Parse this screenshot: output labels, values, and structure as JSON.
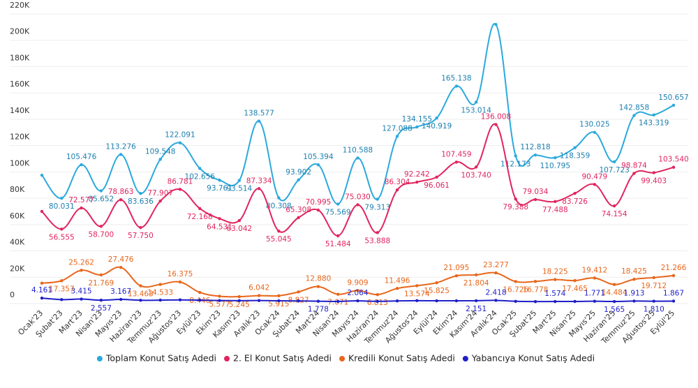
{
  "chart_data": {
    "type": "line",
    "categories": [
      "Ocak'23",
      "Şubat'23",
      "Mart'23",
      "Nisan'23",
      "Mayıs'23",
      "Haziran'23",
      "Temmuz'23",
      "Ağustos'23",
      "Eylül'23",
      "Ekim'23",
      "Kasım'23",
      "Aralık'23",
      "Ocak'24",
      "Şubat'24",
      "Mart'24",
      "Nisan'24",
      "Mayıs'24",
      "Haziran'24",
      "Temmuz'24",
      "Ağustos'24",
      "Eylül'24",
      "Ekim'24",
      "Kasım'24",
      "Aralık'24",
      "Ocak'25",
      "Şubat'25",
      "Mart'25",
      "Nisan'25",
      "Mayıs'25",
      "Haziran'25",
      "Temmuz'25",
      "Ağustos'25",
      "Eylül'25"
    ],
    "series": [
      {
        "name": "Toplam Konut Satış Adedi",
        "color": "#2aa9dd",
        "values": [
          97500,
          80031,
          105476,
          85652,
          113276,
          83636,
          109548,
          122091,
          102656,
          93761,
          93514,
          138577,
          80308,
          93902,
          105394,
          75569,
          110588,
          79313,
          127088,
          134155,
          140919,
          165138,
          153014,
          212000,
          112173,
          112818,
          110795,
          118359,
          130025,
          107723,
          142858,
          143319,
          150657
        ],
        "value_labels": [
          null,
          "80.031",
          "105.476",
          "85.652",
          "113.276",
          "83.636",
          "109.548",
          "122.091",
          "102.656",
          "93.761",
          "93.514",
          "138.577",
          "80.308",
          "93.902",
          "105.394",
          "75.569",
          "110.588",
          "79.313",
          "127.088",
          "134.155",
          "140.919",
          "165.138",
          "153.014",
          null,
          "112.173",
          "112.818",
          "110.795",
          "118.359",
          "130.025",
          "107.723",
          "142.858",
          "143.319",
          "150.657"
        ]
      },
      {
        "name": "2. El Konut Satış Adedi",
        "color": "#e1245f",
        "values": [
          70000,
          56555,
          72577,
          58700,
          78863,
          57750,
          77907,
          86781,
          72168,
          64531,
          63042,
          87334,
          55045,
          65308,
          70995,
          51484,
          75030,
          53888,
          86304,
          92242,
          96061,
          107459,
          103740,
          136008,
          79388,
          79034,
          77488,
          83726,
          90479,
          74154,
          98874,
          99403,
          103540
        ],
        "value_labels": [
          null,
          "56.555",
          "72.577",
          "58.700",
          "78.863",
          "57.750",
          "77.907",
          "86.781",
          "72.168",
          "64.531",
          "63.042",
          "87.334",
          "55.045",
          "65.308",
          "70.995",
          "51.484",
          "75.030",
          "53.888",
          "86.304",
          "92.242",
          "96.061",
          "107.459",
          "103.740",
          "136.008",
          "79.388",
          "79.034",
          "77.488",
          "83.726",
          "90.479",
          "74.154",
          "98.874",
          "99.403",
          "103.540"
        ]
      },
      {
        "name": "Kredili Konut Satış Adedi",
        "color": "#e8661b",
        "values": [
          15500,
          17357,
          25262,
          21769,
          27476,
          13463,
          14533,
          16375,
          8446,
          5577,
          5245,
          6042,
          5915,
          8827,
          12880,
          7071,
          9909,
          6813,
          11496,
          13574,
          15825,
          21095,
          21804,
          23277,
          16726,
          16778,
          18225,
          17465,
          19412,
          14484,
          18425,
          19712,
          21266
        ],
        "value_labels": [
          null,
          "17.357",
          "25.262",
          "21.769",
          "27.476",
          "13.463",
          "14.533",
          "16.375",
          "8.446",
          "5.577",
          "5.245",
          "6.042",
          "5.915",
          "8.827",
          "12.880",
          "7.071",
          "9.909",
          "6.813",
          "11.496",
          "13.574",
          "15.825",
          "21.095",
          "21.804",
          "23.277",
          "16.726",
          "16.778",
          "18.225",
          "17.465",
          "19.412",
          "14.484",
          "18.425",
          "19.712",
          "21.266"
        ]
      },
      {
        "name": "Yabancıya Konut Satış Adedi",
        "color": "#1f1fc9",
        "values": [
          4161,
          3000,
          3415,
          2557,
          3167,
          2500,
          2600,
          2800,
          2600,
          2300,
          2200,
          2300,
          2100,
          2000,
          1778,
          1600,
          2064,
          1700,
          2000,
          2200,
          2100,
          2100,
          2151,
          2418,
          1700,
          1500,
          1574,
          1600,
          1771,
          1565,
          1913,
          1810,
          1867
        ],
        "value_labels": [
          "4.161",
          null,
          "3.415",
          "2.557",
          "3.167",
          null,
          null,
          null,
          null,
          null,
          null,
          null,
          null,
          null,
          "1.778",
          null,
          "2.064",
          null,
          null,
          null,
          null,
          null,
          "2.151",
          "2.418",
          null,
          null,
          "1.574",
          null,
          "1.771",
          "1.565",
          "1.913",
          "1.810",
          "1.867"
        ]
      }
    ],
    "ylim": [
      0,
      220000
    ],
    "yticks": [
      {
        "value": 0,
        "label": "0"
      },
      {
        "value": 20000,
        "label": "20K"
      },
      {
        "value": 40000,
        "label": "40K"
      },
      {
        "value": 60000,
        "label": "60K"
      },
      {
        "value": 80000,
        "label": "80K"
      },
      {
        "value": 100000,
        "label": "100K"
      },
      {
        "value": 120000,
        "label": "120K"
      },
      {
        "value": 140000,
        "label": "140K"
      },
      {
        "value": 160000,
        "label": "160K"
      },
      {
        "value": 180000,
        "label": "180K"
      },
      {
        "value": 200000,
        "label": "200K"
      },
      {
        "value": 220000,
        "label": "220K"
      }
    ],
    "grid": true,
    "legend": "bottom"
  }
}
